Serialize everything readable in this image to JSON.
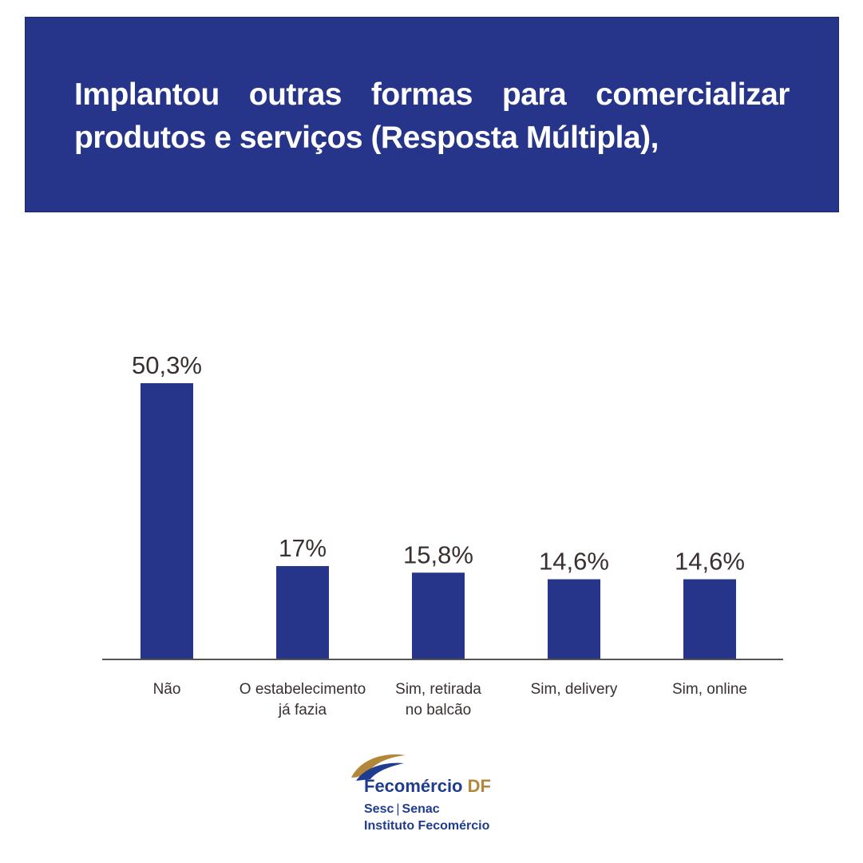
{
  "header": {
    "title": "Implantou outras formas para comercializar produtos e serviços (Resposta Múltipla),"
  },
  "colors": {
    "header_bg": "#263589",
    "header_text": "#ffffff",
    "bar": "#263589",
    "axis": "#555555",
    "label_text": "#3a3030",
    "logo_blue": "#1f3d8f",
    "logo_gold": "#b3873a"
  },
  "chart_data": {
    "type": "bar",
    "title": "Implantou outras formas para comercializar produtos e serviços (Resposta Múltipla),",
    "categories": [
      [
        "Não"
      ],
      [
        "O estabelecimento",
        "já fazia"
      ],
      [
        "Sim, retirada",
        "no balcão"
      ],
      [
        "Sim, delivery"
      ],
      [
        "Sim, online"
      ]
    ],
    "values": [
      50.3,
      17,
      15.8,
      14.6,
      14.6
    ],
    "value_labels": [
      "50,3%",
      "17%",
      "15,8%",
      "14,6%",
      "14,6%"
    ],
    "xlabel": "",
    "ylabel": "",
    "ylim": [
      0,
      50.3
    ],
    "grid": false,
    "legend": "none"
  },
  "logo": {
    "brand": "Fecomércio",
    "brand_suffix": "DF",
    "line1_a": "Sesc",
    "line1_sep": "|",
    "line1_b": "Senac",
    "line2": "Instituto Fecomércio"
  }
}
